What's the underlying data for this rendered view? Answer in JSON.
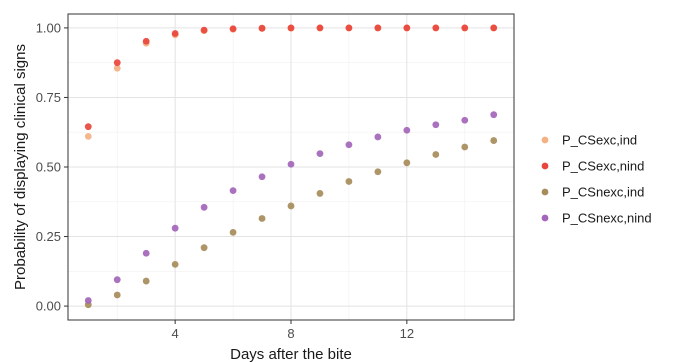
{
  "chart_data": {
    "type": "scatter",
    "title": "",
    "xlabel": "Days after the bite",
    "ylabel": "Probability of displaying clinical signs",
    "xlim": [
      0.3,
      15.7
    ],
    "ylim": [
      -0.05,
      1.05
    ],
    "xticks": [
      4,
      8,
      12
    ],
    "xtick_labels": [
      "4",
      "8",
      "12"
    ],
    "yticks": [
      0.0,
      0.25,
      0.5,
      0.75,
      1.0
    ],
    "ytick_labels": [
      "0.00",
      "0.25",
      "0.50",
      "0.75",
      "1.00"
    ],
    "grid": true,
    "legend_position": "right",
    "x": [
      1,
      2,
      3,
      4,
      5,
      6,
      7,
      8,
      9,
      10,
      11,
      12,
      13,
      14,
      15
    ],
    "series": [
      {
        "name": "P_CSexc,ind",
        "color": "#f4b183",
        "values": [
          0.61,
          0.855,
          0.945,
          0.975,
          0.99,
          0.995,
          0.998,
          0.999,
          1.0,
          1.0,
          1.0,
          1.0,
          1.0,
          1.0,
          1.0
        ]
      },
      {
        "name": "P_CSexc,nind",
        "color": "#e8453c",
        "values": [
          0.645,
          0.875,
          0.952,
          0.98,
          0.992,
          0.997,
          0.999,
          1.0,
          1.0,
          1.0,
          1.0,
          1.0,
          1.0,
          1.0,
          1.0
        ]
      },
      {
        "name": "P_CSnexc,ind",
        "color": "#a68c5a",
        "values": [
          0.005,
          0.04,
          0.09,
          0.15,
          0.21,
          0.265,
          0.315,
          0.36,
          0.405,
          0.448,
          0.483,
          0.515,
          0.545,
          0.572,
          0.595
        ]
      },
      {
        "name": "P_CSnexc,nind",
        "color": "#a366b8",
        "values": [
          0.02,
          0.095,
          0.19,
          0.28,
          0.355,
          0.415,
          0.465,
          0.51,
          0.548,
          0.58,
          0.608,
          0.632,
          0.652,
          0.668,
          0.688
        ]
      }
    ]
  }
}
